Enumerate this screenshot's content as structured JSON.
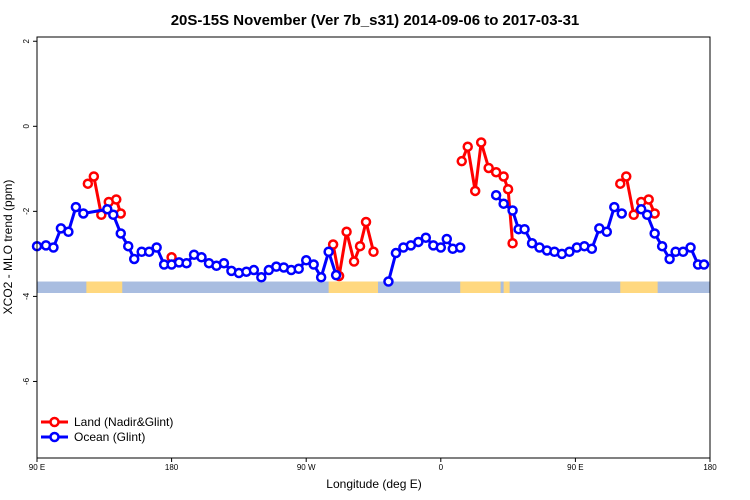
{
  "chart_data": {
    "type": "line",
    "title": "20S-15S November (Ver 7b_s31)   2014-09-06 to 2017-03-31",
    "xlabel": "Longitude (deg E)",
    "ylabel": "XCO2 - MLO trend (ppm)",
    "x_ticks": [
      {
        "value": 90,
        "label": "90 E"
      },
      {
        "value": 180,
        "label": "180"
      },
      {
        "value": 270,
        "label": "90 W"
      },
      {
        "value": 360,
        "label": "0"
      },
      {
        "value": 450,
        "label": "90 E"
      },
      {
        "value": 540,
        "label": "180"
      }
    ],
    "y_ticks": [
      {
        "value": 2,
        "label": "2"
      },
      {
        "value": 0,
        "label": "0"
      },
      {
        "value": -2,
        "label": "-2"
      },
      {
        "value": -4,
        "label": "-4"
      },
      {
        "value": -6,
        "label": "-6"
      }
    ],
    "xlim": [
      90,
      540
    ],
    "ylim": [
      -7.8,
      2.1
    ],
    "legend": {
      "position": "bottom-left"
    },
    "series": [
      {
        "name": "Land (Nadir&Glint)",
        "color": "#ff0000",
        "segments": [
          [
            [
              124,
              -1.35
            ],
            [
              128,
              -1.18
            ],
            [
              133,
              -2.08
            ],
            [
              138,
              -1.78
            ],
            [
              143,
              -1.72
            ],
            [
              146,
              -2.05
            ]
          ],
          [
            [
              180,
              -3.08
            ]
          ],
          [
            [
              288,
              -2.78
            ],
            [
              292,
              -3.52
            ],
            [
              297,
              -2.48
            ],
            [
              302,
              -3.18
            ],
            [
              306,
              -2.82
            ],
            [
              310,
              -2.25
            ],
            [
              315,
              -2.95
            ]
          ],
          [
            [
              374,
              -0.82
            ],
            [
              378,
              -0.48
            ],
            [
              383,
              -1.52
            ],
            [
              387,
              -0.38
            ],
            [
              392,
              -0.98
            ],
            [
              397,
              -1.08
            ],
            [
              402,
              -1.18
            ],
            [
              405,
              -1.48
            ],
            [
              408,
              -2.75
            ]
          ],
          [
            [
              480,
              -1.35
            ],
            [
              484,
              -1.18
            ],
            [
              489,
              -2.08
            ],
            [
              494,
              -1.78
            ],
            [
              499,
              -1.72
            ],
            [
              503,
              -2.05
            ]
          ]
        ]
      },
      {
        "name": "Ocean (Glint)",
        "color": "#0000ff",
        "segments": [
          [
            [
              90,
              -2.82
            ],
            [
              96,
              -2.8
            ],
            [
              101,
              -2.85
            ],
            [
              106,
              -2.4
            ],
            [
              111,
              -2.48
            ],
            [
              116,
              -1.9
            ],
            [
              121,
              -2.05
            ],
            [
              137,
              -1.95
            ],
            [
              141,
              -2.08
            ],
            [
              146,
              -2.52
            ],
            [
              151,
              -2.82
            ],
            [
              155,
              -3.12
            ],
            [
              160,
              -2.95
            ],
            [
              165,
              -2.95
            ],
            [
              170,
              -2.85
            ],
            [
              175,
              -3.25
            ],
            [
              180,
              -3.25
            ],
            [
              185,
              -3.2
            ],
            [
              190,
              -3.22
            ],
            [
              195,
              -3.02
            ],
            [
              200,
              -3.08
            ],
            [
              205,
              -3.22
            ],
            [
              210,
              -3.28
            ],
            [
              215,
              -3.22
            ],
            [
              220,
              -3.4
            ],
            [
              225,
              -3.45
            ],
            [
              230,
              -3.42
            ],
            [
              235,
              -3.38
            ],
            [
              240,
              -3.55
            ],
            [
              245,
              -3.38
            ],
            [
              250,
              -3.3
            ],
            [
              255,
              -3.32
            ],
            [
              260,
              -3.38
            ],
            [
              265,
              -3.35
            ],
            [
              270,
              -3.15
            ],
            [
              275,
              -3.25
            ],
            [
              280,
              -3.55
            ],
            [
              285,
              -2.95
            ],
            [
              290,
              -3.5
            ]
          ],
          [
            [
              325,
              -3.65
            ],
            [
              330,
              -2.98
            ],
            [
              335,
              -2.85
            ],
            [
              340,
              -2.8
            ],
            [
              345,
              -2.72
            ],
            [
              350,
              -2.62
            ],
            [
              355,
              -2.8
            ],
            [
              360,
              -2.85
            ],
            [
              364,
              -2.65
            ],
            [
              368,
              -2.88
            ],
            [
              373,
              -2.85
            ]
          ],
          [
            [
              397,
              -1.62
            ],
            [
              402,
              -1.82
            ],
            [
              408,
              -1.98
            ],
            [
              412,
              -2.42
            ],
            [
              416,
              -2.42
            ],
            [
              421,
              -2.75
            ],
            [
              426,
              -2.85
            ],
            [
              431,
              -2.92
            ],
            [
              436,
              -2.95
            ],
            [
              441,
              -3.0
            ],
            [
              446,
              -2.95
            ],
            [
              451,
              -2.85
            ],
            [
              456,
              -2.82
            ],
            [
              461,
              -2.88
            ],
            [
              466,
              -2.4
            ],
            [
              471,
              -2.48
            ],
            [
              476,
              -1.9
            ],
            [
              481,
              -2.05
            ]
          ],
          [
            [
              494,
              -1.95
            ],
            [
              498,
              -2.08
            ],
            [
              503,
              -2.52
            ],
            [
              508,
              -2.82
            ],
            [
              513,
              -3.12
            ],
            [
              517,
              -2.95
            ],
            [
              522,
              -2.95
            ],
            [
              527,
              -2.85
            ],
            [
              532,
              -3.25
            ],
            [
              536,
              -3.25
            ]
          ]
        ]
      }
    ],
    "surface_strip": {
      "y_range": [
        -3.92,
        -3.65
      ],
      "base_color": "#a9bde0",
      "land_color": "#ffd87f",
      "land_ranges": [
        [
          123,
          147
        ],
        [
          285,
          318
        ],
        [
          373,
          400
        ],
        [
          402,
          406
        ],
        [
          480,
          505
        ]
      ]
    }
  }
}
